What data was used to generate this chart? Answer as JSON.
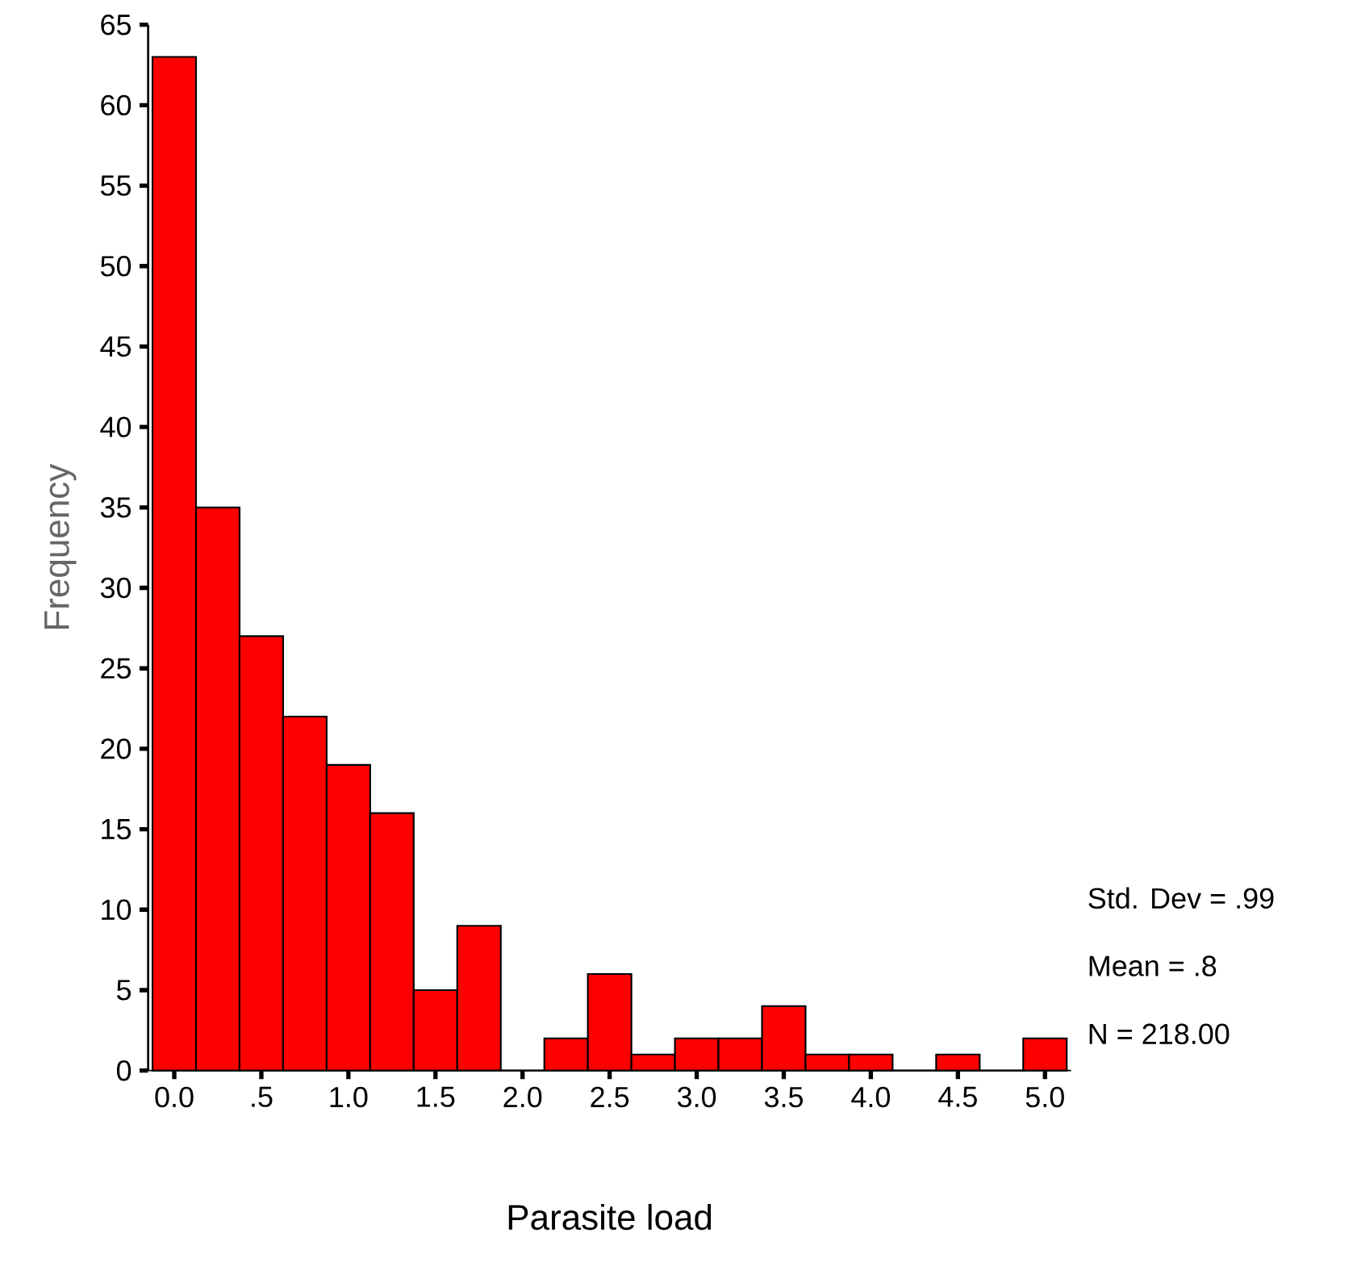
{
  "chart_data": {
    "type": "histogram",
    "xlabel": "Parasite load",
    "ylabel": "Frequency",
    "bins": [
      -0.125,
      0.125,
      0.375,
      0.625,
      0.875,
      1.125,
      1.375,
      1.625,
      1.875,
      2.125,
      2.375,
      2.625,
      2.875,
      3.125,
      3.375,
      3.625,
      3.875,
      4.125,
      4.375,
      4.625,
      4.875,
      5.125
    ],
    "values": [
      63,
      35,
      27,
      22,
      19,
      16,
      5,
      9,
      0,
      2,
      6,
      1,
      2,
      2,
      4,
      1,
      1,
      0,
      1,
      0,
      2
    ],
    "color": "#ff0000",
    "xlim": [
      -0.15,
      5.15
    ],
    "ylim": [
      0,
      65
    ],
    "xticks": [
      {
        "value": 0,
        "label": "0.0"
      },
      {
        "value": 0.5,
        "label": ".5"
      },
      {
        "value": 1,
        "label": "1.0"
      },
      {
        "value": 1.5,
        "label": "1.5"
      },
      {
        "value": 2,
        "label": "2.0"
      },
      {
        "value": 2.5,
        "label": "2.5"
      },
      {
        "value": 3,
        "label": "3.0"
      },
      {
        "value": 3.5,
        "label": "3.5"
      },
      {
        "value": 4,
        "label": "4.0"
      },
      {
        "value": 4.5,
        "label": "4.5"
      },
      {
        "value": 5,
        "label": "5.0"
      }
    ],
    "yticks": [
      0,
      5,
      10,
      15,
      20,
      25,
      30,
      35,
      40,
      45,
      50,
      55,
      60,
      65
    ],
    "annotations": [
      "Std. Dev = .99",
      "Mean = .8",
      "N = 218.00"
    ]
  }
}
